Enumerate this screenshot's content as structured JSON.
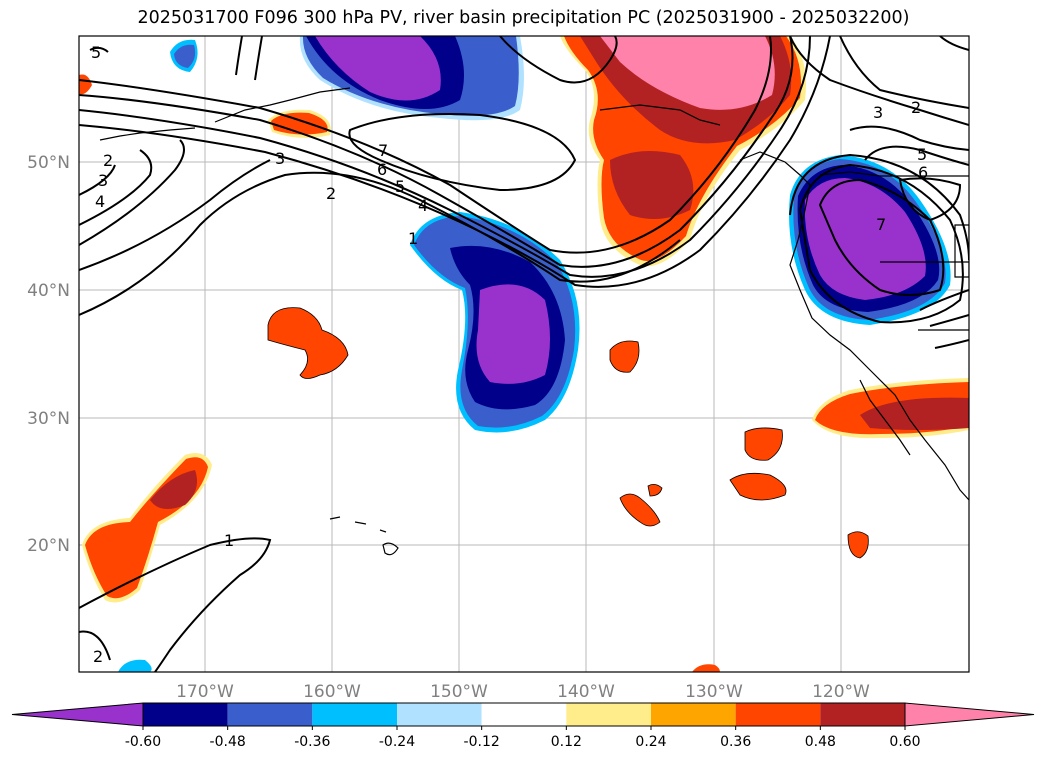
{
  "title": "2025031700 F096 300 hPa PV, river basin precipitation PC (2025031900 - 2025032200)",
  "axes": {
    "lon_labels": [
      "170°W",
      "160°W",
      "150°W",
      "140°W",
      "130°W",
      "120°W"
    ],
    "lat_labels": [
      "50°N",
      "40°N",
      "30°N",
      "20°N"
    ]
  },
  "contour_labels": [
    "5",
    "2",
    "3",
    "4",
    "3",
    "2",
    "7",
    "6",
    "5",
    "4",
    "1",
    "3",
    "2",
    "5",
    "6",
    "7",
    "1",
    "2"
  ],
  "colorbar": {
    "colors": [
      "#9932cc",
      "#00008b",
      "#3a5fcd",
      "#00bfff",
      "#b0e2ff",
      "#ffffff",
      "#ffec8b",
      "#ffa500",
      "#ff4500",
      "#b22222",
      "#ff82ab"
    ],
    "tick_labels": [
      "-0.60",
      "-0.48",
      "-0.36",
      "-0.24",
      "-0.12",
      "0.12",
      "0.24",
      "0.36",
      "0.48",
      "0.60"
    ]
  }
}
